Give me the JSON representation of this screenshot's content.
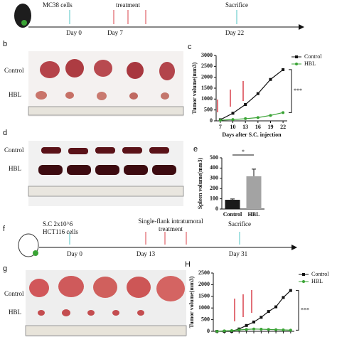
{
  "timeline_1": {
    "cells": "MC38 cells",
    "day_0": "Day 0",
    "day_7": "Day 7",
    "day_22": "Day 22",
    "treatment": "treatment",
    "sacrifice": "Sacrifice"
  },
  "timeline_2": {
    "injection": "S.C 2x10^6",
    "cells": "HCT116 cells",
    "day_0": "Day 0",
    "day_13": "Day 13",
    "day_31": "Day 31",
    "treatment_1": "Single-flank intratumoral",
    "treatment_2": "treatment",
    "sacrifice": "Sacrifice"
  },
  "panel_labels": [
    "b",
    "d",
    "f",
    "g"
  ],
  "photo_b": {
    "rows": [
      "Control",
      "HBL"
    ]
  },
  "photo_d": {
    "rows": [
      "Control",
      "HBL"
    ]
  },
  "photo_g": {
    "rows": [
      "Control",
      "HBL"
    ]
  },
  "chart_data": [
    {
      "type": "line",
      "label": "c",
      "ylabel": "Tumor volume(mm3)",
      "xlabel": "Days after S.C. injection",
      "x": [
        7,
        10,
        13,
        16,
        19,
        22
      ],
      "xlim": [
        6,
        23
      ],
      "xticks": [
        7,
        10,
        13,
        16,
        19,
        22
      ],
      "ylim": [
        0,
        3000
      ],
      "yticks": [
        0,
        500,
        1000,
        1500,
        2000,
        2500,
        3000
      ],
      "series": [
        {
          "name": "Control",
          "color": "#111111",
          "values": [
            50,
            350,
            750,
            1250,
            1900,
            2350
          ]
        },
        {
          "name": "HBL",
          "color": "#3aa335",
          "values": [
            30,
            60,
            100,
            150,
            250,
            380
          ]
        }
      ],
      "annotation": "***",
      "legend": "top-right"
    },
    {
      "type": "bar",
      "label": "e",
      "ylabel": "Spleen volume(mm3)",
      "categories": [
        "Control",
        "HBL"
      ],
      "values": [
        90,
        320
      ],
      "errors": [
        8,
        70
      ],
      "colors": [
        "#1a1a1a",
        "#a3a3a3"
      ],
      "ylim": [
        0,
        500
      ],
      "yticks": [
        0,
        100,
        200,
        300,
        400,
        500
      ],
      "annotation": "*"
    },
    {
      "type": "line",
      "label": "H",
      "ylabel": "Tumor volume(mm3)",
      "categories": [
        null,
        null,
        null,
        null,
        null,
        null,
        null,
        null,
        null,
        null,
        null
      ],
      "ylim": [
        0,
        2500
      ],
      "yticks": [
        0,
        500,
        1000,
        1500,
        2000,
        2500
      ],
      "series": [
        {
          "name": "Control",
          "color": "#111111",
          "values": [
            0,
            0,
            0,
            100,
            250,
            400,
            600,
            850,
            1050,
            1450,
            1750
          ]
        },
        {
          "name": "HBL",
          "color": "#3aa335",
          "values": [
            0,
            20,
            30,
            60,
            80,
            100,
            90,
            80,
            70,
            60,
            50
          ]
        }
      ],
      "annotation": "***",
      "legend": "top-right"
    }
  ]
}
